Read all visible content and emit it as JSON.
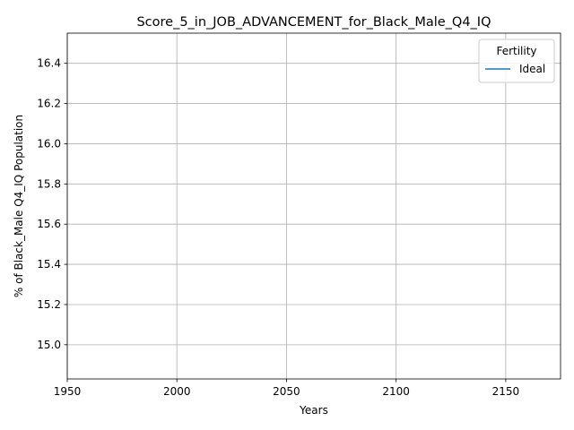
{
  "chart_data": {
    "type": "line",
    "title": "Score_5_in_JOB_ADVANCEMENT_for_Black_Male_Q4_IQ",
    "xlabel": "Years",
    "ylabel": "% of Black_Male Q4_IQ Population",
    "xlim": [
      1950,
      2175
    ],
    "ylim": [
      14.83,
      16.55
    ],
    "x_ticks": [
      "1950",
      "2000",
      "2050",
      "2100",
      "2150"
    ],
    "y_ticks": [
      "15.0",
      "15.2",
      "15.4",
      "15.6",
      "15.8",
      "16.0",
      "16.2",
      "16.4"
    ],
    "grid": true,
    "legend": {
      "title": "Fertility",
      "position": "top-right"
    },
    "series": [
      {
        "name": "Ideal",
        "color": "#1f77b4",
        "x": [],
        "y": []
      }
    ]
  }
}
